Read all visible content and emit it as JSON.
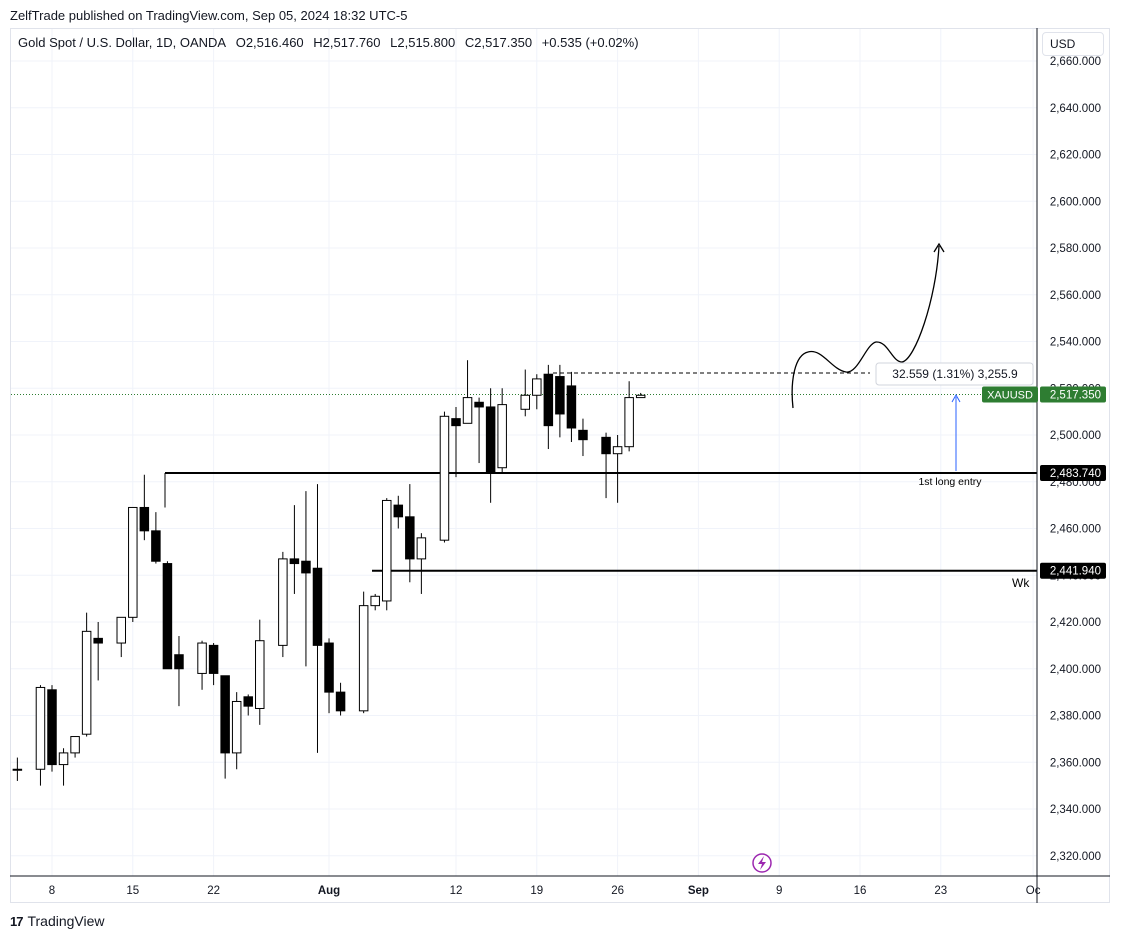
{
  "publisher": "ZelfTrade published on TradingView.com, Sep 05, 2024 18:32 UTC-5",
  "legend": {
    "symbol": "Gold Spot / U.S. Dollar, 1D, OANDA",
    "open": "O2,516.460",
    "high": "H2,517.760",
    "low": "L2,515.800",
    "close": "C2,517.350",
    "change": "+0.535 (+0.02%)"
  },
  "currency": "USD",
  "brand": "TradingView",
  "colors": {
    "up": "#ffffff",
    "down": "#000000",
    "price_line": "#2e7d32",
    "entry_arrow": "#2962ff"
  },
  "chart_data": {
    "type": "candlestick",
    "title": "Gold Spot / U.S. Dollar, 1D, OANDA",
    "ylim": [
      2312,
      2665
    ],
    "y_ticks": [
      2320,
      2340,
      2360,
      2380,
      2400,
      2420,
      2440,
      2460,
      2480,
      2500,
      2520,
      2540,
      2560,
      2580,
      2600,
      2620,
      2640,
      2660
    ],
    "y_tick_labels": [
      "2,320.000",
      "2,340.000",
      "2,360.000",
      "2,380.000",
      "2,400.000",
      "2,420.000",
      "2,440.000",
      "2,460.000",
      "2,480.000",
      "2,500.000",
      "2,520.000",
      "2,540.000",
      "2,560.000",
      "2,580.000",
      "2,600.000",
      "2,620.000",
      "2,640.000",
      "2,660.000"
    ],
    "x_ticks": [
      {
        "label": "8",
        "x": "2024-07-08"
      },
      {
        "label": "15",
        "x": "2024-07-15"
      },
      {
        "label": "22",
        "x": "2024-07-22"
      },
      {
        "label": "Aug",
        "x": "2024-08-01"
      },
      {
        "label": "12",
        "x": "2024-08-12"
      },
      {
        "label": "19",
        "x": "2024-08-19"
      },
      {
        "label": "26",
        "x": "2024-08-26"
      },
      {
        "label": "Sep",
        "x": "2024-09-02"
      },
      {
        "label": "9",
        "x": "2024-09-09"
      },
      {
        "label": "16",
        "x": "2024-09-16"
      },
      {
        "label": "23",
        "x": "2024-09-23"
      },
      {
        "label": "Oc",
        "x": "2024-10-01"
      }
    ],
    "candles": [
      {
        "date": "2024-07-05",
        "o": 2357,
        "h": 2362,
        "l": 2352,
        "c": 2357
      },
      {
        "date": "2024-07-07",
        "o": 2357,
        "h": 2393,
        "l": 2350,
        "c": 2392
      },
      {
        "date": "2024-07-08",
        "o": 2391,
        "h": 2393,
        "l": 2356,
        "c": 2359
      },
      {
        "date": "2024-07-09",
        "o": 2359,
        "h": 2366,
        "l": 2350,
        "c": 2364
      },
      {
        "date": "2024-07-10",
        "o": 2364,
        "h": 2371,
        "l": 2362,
        "c": 2371
      },
      {
        "date": "2024-07-11",
        "o": 2372,
        "h": 2424,
        "l": 2371,
        "c": 2416
      },
      {
        "date": "2024-07-12",
        "o": 2413,
        "h": 2420,
        "l": 2395,
        "c": 2411
      },
      {
        "date": "2024-07-14",
        "o": 2411,
        "h": 2420,
        "l": 2405,
        "c": 2422
      },
      {
        "date": "2024-07-15",
        "o": 2422,
        "h": 2469,
        "l": 2420,
        "c": 2469
      },
      {
        "date": "2024-07-16",
        "o": 2469,
        "h": 2483,
        "l": 2455,
        "c": 2459
      },
      {
        "date": "2024-07-17",
        "o": 2459,
        "h": 2467,
        "l": 2445,
        "c": 2446
      },
      {
        "date": "2024-07-18",
        "o": 2445,
        "h": 2446,
        "l": 2400,
        "c": 2400
      },
      {
        "date": "2024-07-19",
        "o": 2406,
        "h": 2414,
        "l": 2384,
        "c": 2400
      },
      {
        "date": "2024-07-21",
        "o": 2398,
        "h": 2412,
        "l": 2391,
        "c": 2411
      },
      {
        "date": "2024-07-22",
        "o": 2410,
        "h": 2411,
        "l": 2393,
        "c": 2398
      },
      {
        "date": "2024-07-23",
        "o": 2397,
        "h": 2397,
        "l": 2353,
        "c": 2364
      },
      {
        "date": "2024-07-24",
        "o": 2364,
        "h": 2390,
        "l": 2357,
        "c": 2386
      },
      {
        "date": "2024-07-25",
        "o": 2388,
        "h": 2389,
        "l": 2380,
        "c": 2384
      },
      {
        "date": "2024-07-26",
        "o": 2383,
        "h": 2421,
        "l": 2376,
        "c": 2412
      },
      {
        "date": "2024-07-28",
        "o": 2410,
        "h": 2450,
        "l": 2405,
        "c": 2447
      },
      {
        "date": "2024-07-29",
        "o": 2447,
        "h": 2470,
        "l": 2432,
        "c": 2445
      },
      {
        "date": "2024-07-30",
        "o": 2446,
        "h": 2476,
        "l": 2401,
        "c": 2441
      },
      {
        "date": "2024-07-31",
        "o": 2443,
        "h": 2479,
        "l": 2364,
        "c": 2410
      },
      {
        "date": "2024-08-01",
        "o": 2411,
        "h": 2413,
        "l": 2381,
        "c": 2390
      },
      {
        "date": "2024-08-02",
        "o": 2390,
        "h": 2394,
        "l": 2380,
        "c": 2382
      },
      {
        "date": "2024-08-04",
        "o": 2382,
        "h": 2433,
        "l": 2381,
        "c": 2427
      },
      {
        "date": "2024-08-05",
        "o": 2427,
        "h": 2432,
        "l": 2425,
        "c": 2431
      },
      {
        "date": "2024-08-06",
        "o": 2429,
        "h": 2473,
        "l": 2425,
        "c": 2472
      },
      {
        "date": "2024-08-07",
        "o": 2470,
        "h": 2474,
        "l": 2460,
        "c": 2465
      },
      {
        "date": "2024-08-08",
        "o": 2465,
        "h": 2479,
        "l": 2437,
        "c": 2447
      },
      {
        "date": "2024-08-09",
        "o": 2447,
        "h": 2458,
        "l": 2432,
        "c": 2456
      },
      {
        "date": "2024-08-11",
        "o": 2455,
        "h": 2510,
        "l": 2454,
        "c": 2508
      },
      {
        "date": "2024-08-12",
        "o": 2507,
        "h": 2512,
        "l": 2482,
        "c": 2504
      },
      {
        "date": "2024-08-13",
        "o": 2505,
        "h": 2532,
        "l": 2505,
        "c": 2516
      },
      {
        "date": "2024-08-14",
        "o": 2514,
        "h": 2516,
        "l": 2488,
        "c": 2512
      },
      {
        "date": "2024-08-15",
        "o": 2512,
        "h": 2520,
        "l": 2471,
        "c": 2484
      },
      {
        "date": "2024-08-16",
        "o": 2486,
        "h": 2520,
        "l": 2484,
        "c": 2513
      },
      {
        "date": "2024-08-18",
        "o": 2511,
        "h": 2528,
        "l": 2508,
        "c": 2517
      },
      {
        "date": "2024-08-19",
        "o": 2517,
        "h": 2526,
        "l": 2511,
        "c": 2524
      },
      {
        "date": "2024-08-20",
        "o": 2526,
        "h": 2530,
        "l": 2494,
        "c": 2504
      },
      {
        "date": "2024-08-21",
        "o": 2525,
        "h": 2530,
        "l": 2499,
        "c": 2509
      },
      {
        "date": "2024-08-22",
        "o": 2521,
        "h": 2527,
        "l": 2497,
        "c": 2503
      },
      {
        "date": "2024-08-23",
        "o": 2502,
        "h": 2507,
        "l": 2491,
        "c": 2498
      },
      {
        "date": "2024-08-25",
        "o": 2499,
        "h": 2501,
        "l": 2473,
        "c": 2492
      },
      {
        "date": "2024-08-26",
        "o": 2492,
        "h": 2500,
        "l": 2471,
        "c": 2495
      },
      {
        "date": "2024-08-27",
        "o": 2495,
        "h": 2523,
        "l": 2493,
        "c": 2516
      },
      {
        "date": "2024-08-28",
        "o": 2516,
        "h": 2518,
        "l": 2516,
        "c": 2517
      }
    ],
    "horizontal_lines": [
      {
        "label": "2,483.740",
        "value": 2483.74
      },
      {
        "label": "2,441.940",
        "value": 2441.94,
        "note": "Wk"
      }
    ],
    "dashed_level": 2526.5,
    "current_price": {
      "symbol": "XAUUSD",
      "label": "2,517.350",
      "value": 2517.35
    },
    "measure": {
      "text": "32.559 (1.31%) 3,255.9"
    },
    "annotations": [
      "1st long entry",
      "Wk"
    ]
  }
}
